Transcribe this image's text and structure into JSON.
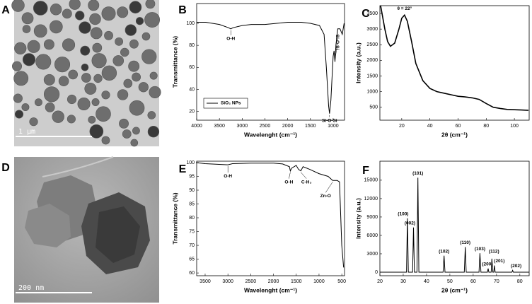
{
  "images": [
    {
      "label": "A",
      "scale_bar": "1 μm"
    },
    {
      "label": "D",
      "scale_bar": "200 nm"
    }
  ],
  "chart_data": [
    {
      "type": "line",
      "label": "B",
      "x_label": "Wavelenght (cm⁻¹)",
      "y_label": "Transmittance (%)",
      "x": [
        4000,
        3800,
        3500,
        3300,
        3250,
        3200,
        3000,
        2800,
        2500,
        2000,
        1700,
        1500,
        1300,
        1200,
        1150,
        1100,
        1080,
        1050,
        1000,
        980,
        960,
        940,
        900,
        850,
        800,
        760
      ],
      "series": [
        {
          "name": "SiO₂ NPs",
          "color": "#000000",
          "values": [
            101,
            101,
            99,
            96,
            95,
            96,
            98,
            99,
            99,
            101,
            101,
            100,
            98,
            90,
            60,
            25,
            18,
            30,
            70,
            75,
            65,
            80,
            95,
            95,
            90,
            100
          ]
        }
      ],
      "xlim": [
        4000,
        750
      ],
      "xticks": [
        4000,
        3500,
        3000,
        2500,
        2000,
        1500,
        1000
      ],
      "ylim": [
        12,
        118
      ],
      "yticks": [
        20,
        40,
        60,
        80,
        100
      ],
      "annotations": [
        {
          "text": "O-H",
          "x": 3250
        },
        {
          "text": "Si-O-Si",
          "x": 1080
        },
        {
          "text": "Si-O-Si",
          "x": 960
        }
      ]
    },
    {
      "type": "line",
      "label": "C",
      "x_label": "2θ (cm⁻¹)",
      "y_label": "Intensity (a.u.)",
      "color": "#000000",
      "x": [
        5,
        8,
        10,
        12,
        15,
        18,
        20,
        22,
        24,
        27,
        30,
        35,
        40,
        45,
        50,
        55,
        60,
        65,
        70,
        75,
        80,
        85,
        90,
        95,
        100,
        105,
        110
      ],
      "values": [
        3750,
        3000,
        2600,
        2450,
        2550,
        3000,
        3350,
        3450,
        3250,
        2600,
        1900,
        1350,
        1100,
        1000,
        950,
        900,
        850,
        830,
        800,
        750,
        620,
        500,
        460,
        430,
        420,
        410,
        400
      ],
      "xlim": [
        4.5,
        110.5
      ],
      "xticks": [
        20,
        40,
        60,
        80,
        100
      ],
      "ylim": [
        85,
        3750
      ],
      "yticks": [
        500,
        1000,
        1500,
        2000,
        2500,
        3000,
        3500
      ],
      "annotations": [
        {
          "text": "θ = 22°",
          "x": 22
        }
      ]
    },
    {
      "type": "line",
      "label": "E",
      "x_label": "Wavelenght (cm⁻¹)",
      "y_label": "Transmittance (%)",
      "color": "#000000",
      "x": [
        3700,
        3500,
        3000,
        2900,
        2500,
        2000,
        1800,
        1650,
        1630,
        1600,
        1500,
        1450,
        1400,
        1350,
        1200,
        1000,
        800,
        700,
        600,
        550,
        500,
        460
      ],
      "values": [
        100,
        99.6,
        99.2,
        99.6,
        99.8,
        99.8,
        99.5,
        98.5,
        97,
        98,
        99,
        97.5,
        97,
        98.5,
        97.5,
        96,
        95,
        93.5,
        93.5,
        93,
        70,
        62
      ],
      "xlim": [
        3686,
        440
      ],
      "xticks": [
        3500,
        3000,
        2500,
        2000,
        1500,
        1000,
        500
      ],
      "ylim": [
        59,
        100.5
      ],
      "yticks": [
        60,
        65,
        70,
        75,
        80,
        85,
        90,
        95,
        100
      ],
      "annotations": [
        {
          "text": "O-H",
          "x": 3000
        },
        {
          "text": "O-H",
          "x": 1630
        },
        {
          "text": "C-H₃",
          "x": 1400
        },
        {
          "text": "Zn-O",
          "x": 700
        }
      ]
    },
    {
      "type": "line",
      "label": "F",
      "x_label": "2θ (cm⁻¹)",
      "y_label": "Intensity (a.u.)",
      "color": "#000000",
      "x": [
        20,
        31.4,
        31.8,
        32.2,
        34.0,
        34.4,
        34.8,
        35.9,
        36.3,
        36.7,
        47.1,
        47.5,
        47.9,
        56.2,
        56.6,
        57.0,
        62.5,
        62.9,
        63.3,
        66.1,
        66.4,
        66.7,
        67.7,
        68.0,
        68.4,
        68.8,
        69.1,
        69.4,
        76.6,
        76.9,
        77.2,
        84
      ],
      "values": [
        0,
        0,
        8800,
        0,
        0,
        7300,
        0,
        0,
        15400,
        0,
        0,
        2700,
        0,
        0,
        4100,
        0,
        0,
        3100,
        0,
        0,
        600,
        0,
        0,
        2200,
        0,
        0,
        1100,
        0,
        0,
        300,
        0,
        0
      ],
      "xlim": [
        20,
        84
      ],
      "xticks": [
        20,
        30,
        40,
        50,
        60,
        70,
        80
      ],
      "ylim": [
        -577,
        18100
      ],
      "yticks": [
        0,
        3000,
        6000,
        9000,
        12000,
        15000
      ],
      "annotations": [
        {
          "text": "(100)",
          "x": 31.8
        },
        {
          "text": "(002)",
          "x": 34.4
        },
        {
          "text": "(101)",
          "x": 36.3
        },
        {
          "text": "(102)",
          "x": 47.5
        },
        {
          "text": "(110)",
          "x": 56.6
        },
        {
          "text": "(103)",
          "x": 62.9
        },
        {
          "text": "(200)",
          "x": 66.4
        },
        {
          "text": "(112)",
          "x": 68.0
        },
        {
          "text": "(201)",
          "x": 69.1
        },
        {
          "text": "(202)",
          "x": 76.9
        }
      ]
    }
  ]
}
